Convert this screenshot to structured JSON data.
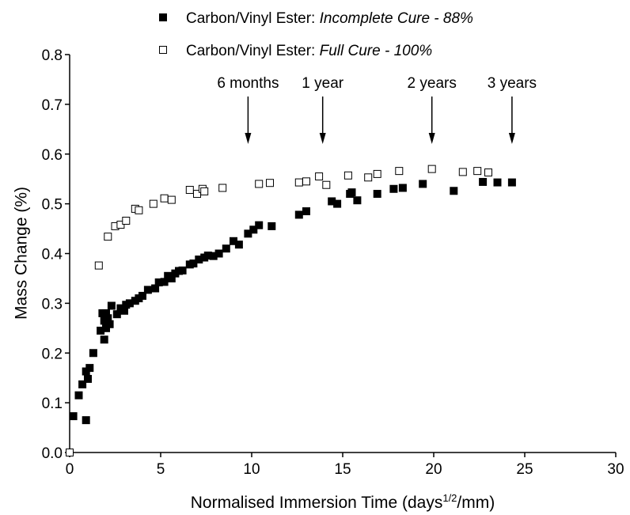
{
  "chart_data": {
    "type": "scatter",
    "xlabel": [
      "Normalised Immersion Time (days",
      "1/2",
      "/mm)"
    ],
    "ylabel": "Mass Change (%)",
    "xlim": [
      0,
      30
    ],
    "ylim": [
      0,
      0.8
    ],
    "xticks": [
      0,
      5,
      10,
      15,
      20,
      25,
      30
    ],
    "yticks": [
      {
        "value": 0,
        "label": "0.0"
      },
      0.1,
      0.2,
      0.3,
      0.4,
      0.5,
      0.6,
      0.7,
      0.8
    ],
    "legend": "top",
    "annotations": [
      {
        "text": "6 months",
        "x": 9.8
      },
      {
        "text": "1 year",
        "x": 13.9
      },
      {
        "text": "2 years",
        "x": 19.9
      },
      {
        "text": "3 years",
        "x": 24.3
      }
    ],
    "series": [
      {
        "name": "Carbon/Vinyl Ester: Incomplete Cure - 88%",
        "color": "#000000",
        "filled": true,
        "x": [
          0.2,
          0.5,
          0.7,
          0.9,
          0.9,
          1.0,
          1.1,
          1.3,
          1.7,
          1.8,
          1.9,
          1.9,
          2.0,
          2.0,
          2.1,
          2.2,
          2.3,
          2.6,
          2.8,
          3.0,
          3.1,
          3.3,
          3.6,
          3.8,
          4.0,
          4.3,
          4.7,
          4.9,
          5.2,
          5.4,
          5.6,
          5.8,
          6.0,
          6.2,
          6.6,
          6.8,
          7.1,
          7.4,
          7.6,
          7.9,
          8.2,
          8.6,
          9.0,
          9.3,
          9.8,
          10.1,
          10.4,
          11.1,
          12.6,
          13.0,
          14.4,
          14.7,
          15.4,
          15.5,
          15.8,
          16.9,
          17.8,
          18.3,
          19.4,
          21.1,
          22.7,
          23.5,
          24.3
        ],
        "values": [
          0.073,
          0.115,
          0.137,
          0.163,
          0.065,
          0.148,
          0.17,
          0.2,
          0.245,
          0.28,
          0.227,
          0.265,
          0.25,
          0.28,
          0.27,
          0.258,
          0.295,
          0.278,
          0.29,
          0.285,
          0.297,
          0.3,
          0.305,
          0.31,
          0.315,
          0.327,
          0.33,
          0.342,
          0.343,
          0.355,
          0.35,
          0.36,
          0.365,
          0.366,
          0.378,
          0.38,
          0.388,
          0.392,
          0.396,
          0.395,
          0.4,
          0.41,
          0.425,
          0.418,
          0.44,
          0.448,
          0.457,
          0.455,
          0.478,
          0.485,
          0.505,
          0.5,
          0.52,
          0.523,
          0.507,
          0.52,
          0.53,
          0.532,
          0.54,
          0.526,
          0.544,
          0.543,
          0.543
        ]
      },
      {
        "name": "Carbon/Vinyl Ester: Full Cure - 100%",
        "color": "#000000",
        "filled": false,
        "x": [
          0,
          1.6,
          2.1,
          2.5,
          2.8,
          3.1,
          3.6,
          3.8,
          4.6,
          5.2,
          5.6,
          6.6,
          7.0,
          7.3,
          7.4,
          8.4,
          10.4,
          11.0,
          12.6,
          13.0,
          13.7,
          14.1,
          15.3,
          16.4,
          16.9,
          18.1,
          19.9,
          21.6,
          22.4,
          23.0
        ],
        "values": [
          0,
          0.376,
          0.434,
          0.455,
          0.458,
          0.466,
          0.49,
          0.487,
          0.5,
          0.511,
          0.508,
          0.528,
          0.52,
          0.53,
          0.525,
          0.532,
          0.54,
          0.542,
          0.543,
          0.545,
          0.555,
          0.538,
          0.557,
          0.553,
          0.56,
          0.566,
          0.57,
          0.564,
          0.566,
          0.563
        ]
      }
    ]
  }
}
